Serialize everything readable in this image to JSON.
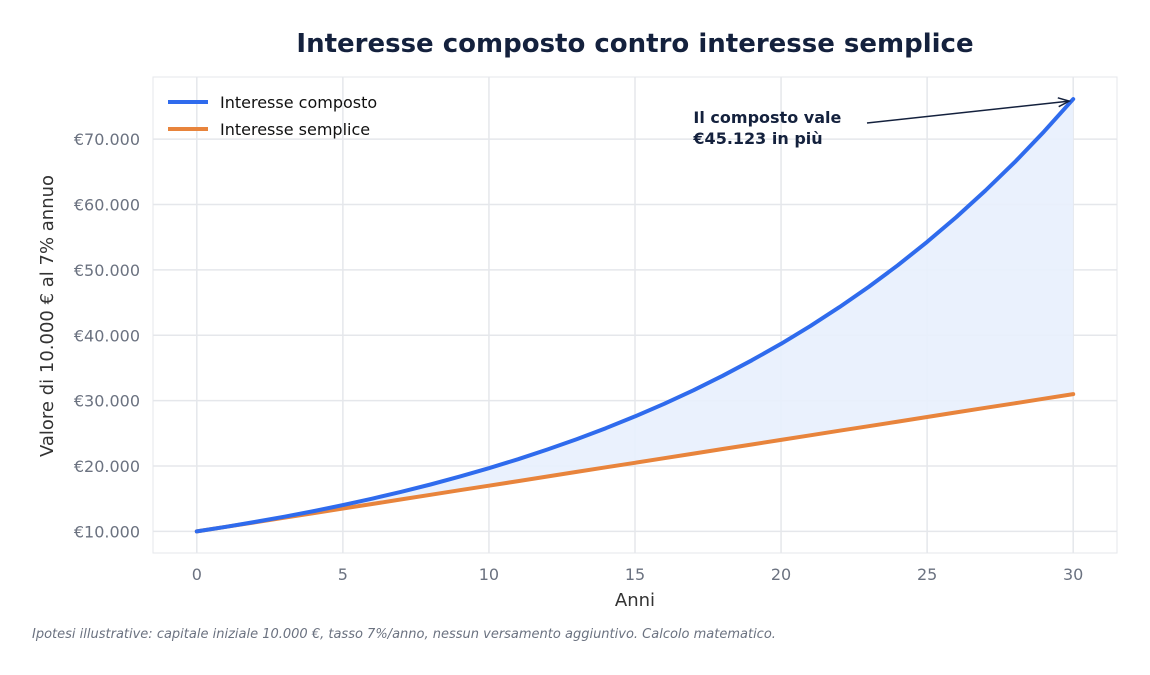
{
  "chart_data": {
    "type": "line",
    "title": "Interesse composto contro interesse semplice",
    "xlabel": "Anni",
    "ylabel": "Valore di 10.000 € al 7% annuo",
    "xlim": [
      -1.5,
      31.5
    ],
    "ylim": [
      6700,
      79500
    ],
    "xticks": [
      0,
      5,
      10,
      15,
      20,
      25,
      30
    ],
    "xtick_labels": [
      "0",
      "5",
      "10",
      "15",
      "20",
      "25",
      "30"
    ],
    "yticks": [
      10000,
      20000,
      30000,
      40000,
      50000,
      60000,
      70000
    ],
    "ytick_labels": [
      "€10.000",
      "€20.000",
      "€30.000",
      "€40.000",
      "€50.000",
      "€60.000",
      "€70.000"
    ],
    "grid": true,
    "legend_position": "top-left",
    "x": [
      0,
      1,
      2,
      3,
      4,
      5,
      6,
      7,
      8,
      9,
      10,
      11,
      12,
      13,
      14,
      15,
      16,
      17,
      18,
      19,
      20,
      21,
      22,
      23,
      24,
      25,
      26,
      27,
      28,
      29,
      30
    ],
    "series": [
      {
        "name": "Interesse composto",
        "color": "#2f6bed",
        "values": [
          10000,
          10700,
          11449,
          12250,
          13108,
          14026,
          15007,
          16058,
          17182,
          18385,
          19672,
          21049,
          22522,
          24098,
          25785,
          27590,
          29522,
          31588,
          33799,
          36165,
          38697,
          41406,
          44304,
          47405,
          50724,
          54274,
          58074,
          62139,
          66488,
          71143,
          76123
        ]
      },
      {
        "name": "Interesse semplice",
        "color": "#e8843c",
        "values": [
          10000,
          10700,
          11400,
          12100,
          12800,
          13500,
          14200,
          14900,
          15600,
          16300,
          17000,
          17700,
          18400,
          19100,
          19800,
          20500,
          21200,
          21900,
          22600,
          23300,
          24000,
          24700,
          25400,
          26100,
          26800,
          27500,
          28200,
          28900,
          29600,
          30300,
          31000
        ]
      }
    ],
    "fill_between_color": "#e8f0fd",
    "annotation": {
      "lines": [
        "Il composto vale",
        "€45.123 in più"
      ],
      "target_x": 30,
      "target_y": 76123,
      "text_x": 17,
      "text_y": 72500
    }
  },
  "footnote": "Ipotesi illustrative: capitale iniziale 10.000 €, tasso 7%/anno, nessun versamento aggiuntivo. Calcolo matematico."
}
